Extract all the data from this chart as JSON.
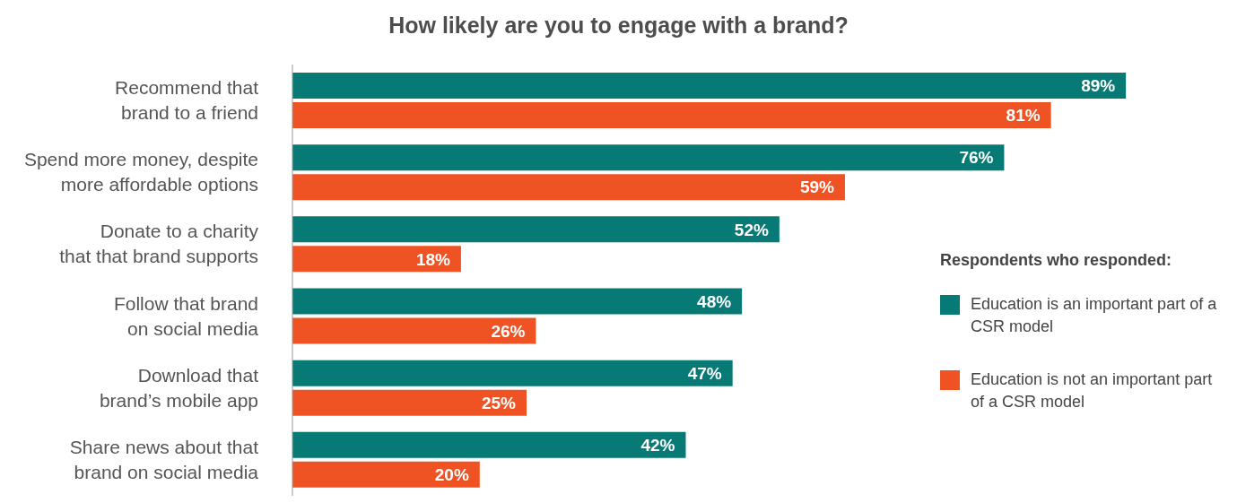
{
  "chart_data": {
    "type": "bar",
    "orientation": "horizontal",
    "title": "How likely are you to engage with a brand?",
    "categories": [
      "Recommend that brand to a friend",
      "Spend more money, despite more affordable options",
      "Donate to a charity that that brand supports",
      "Follow that brand on social media",
      "Download that brand’s mobile app",
      "Share news about that brand on social media"
    ],
    "series": [
      {
        "name": "Education is an important part of a CSR model",
        "color": "#077a76",
        "values": [
          89,
          76,
          52,
          48,
          47,
          42
        ],
        "value_labels": [
          "89%",
          "76%",
          "52%",
          "48%",
          "47%",
          "42%"
        ]
      },
      {
        "name": "Education is not an important part of a CSR model",
        "color": "#f05323",
        "values": [
          81,
          59,
          18,
          26,
          25,
          20
        ],
        "value_labels": [
          "81%",
          "59%",
          "18%",
          "26%",
          "25%",
          "20%"
        ]
      }
    ],
    "tick_labels": "y",
    "legend": "right",
    "legend_title": "Respondents who responded:",
    "grid": false
  }
}
